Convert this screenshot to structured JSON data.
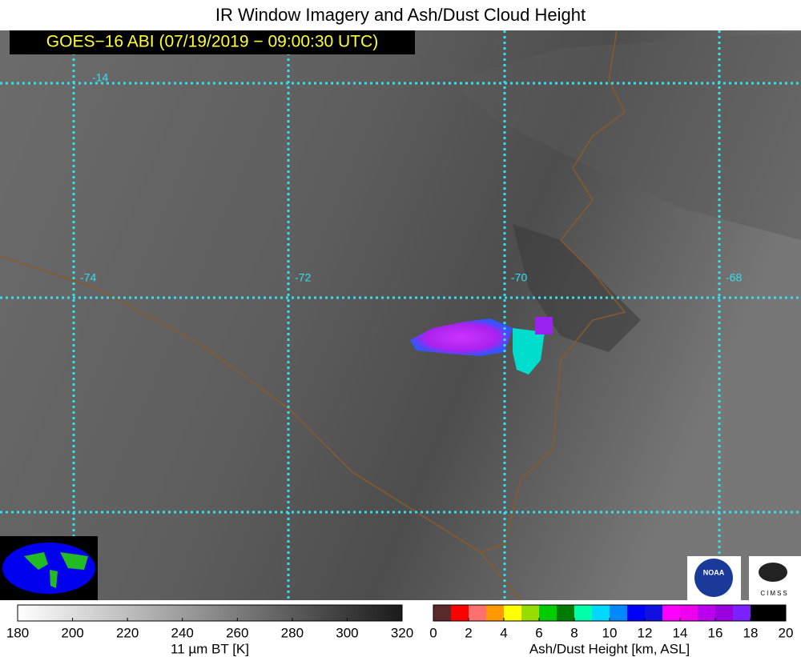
{
  "header": {
    "title": "IR Window Imagery and Ash/Dust Cloud Height",
    "subtitle": "GOES−16 ABI (07/19/2019 − 09:00:30 UTC)"
  },
  "grid_labels": [
    "-14",
    "-74",
    "-72",
    "-70",
    "-68"
  ],
  "logos": {
    "noaa": "NOAA",
    "cimss": "CIMSS"
  },
  "colorbars": [
    {
      "label": "11 µm BT [K]",
      "lim": [
        180,
        320
      ],
      "ticks": [
        180,
        200,
        220,
        240,
        260,
        280,
        300,
        320
      ],
      "colors": [
        "#ffffff",
        "#1a1a1a"
      ]
    },
    {
      "label": "Ash/Dust Height [km, ASL]",
      "lim": [
        0,
        20
      ],
      "ticks": [
        0,
        2,
        4,
        6,
        8,
        10,
        12,
        14,
        16,
        18,
        20
      ],
      "colors": [
        "#5a2a2a",
        "#ff0000",
        "#ff7070",
        "#ff9900",
        "#ffff00",
        "#99dd00",
        "#00cc00",
        "#007a00",
        "#00ffaa",
        "#00d8ff",
        "#0088ff",
        "#0000ff",
        "#1010e0",
        "#ff00ff",
        "#ee00ee",
        "#bb00ee",
        "#9900dd",
        "#7a22ff",
        "#000000",
        "#000000"
      ]
    }
  ]
}
